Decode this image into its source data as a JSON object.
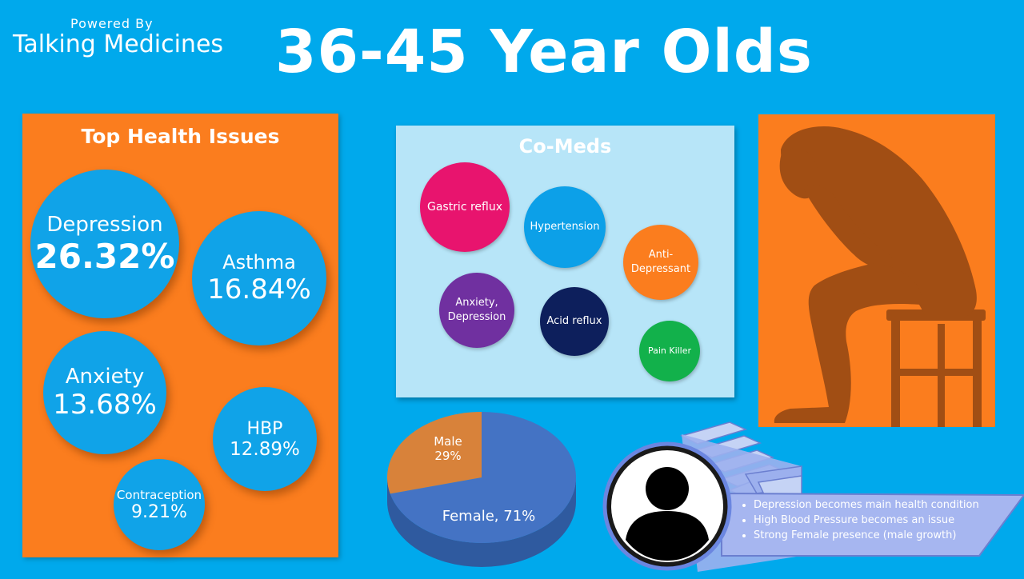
{
  "header": {
    "powered_by": "Powered By",
    "brand": "Talking Medicines",
    "title": "36-45 Year Olds"
  },
  "health_issues": {
    "title": "Top Health Issues",
    "items": [
      {
        "name": "Depression",
        "value": "26.32%"
      },
      {
        "name": "Asthma",
        "value": "16.84%"
      },
      {
        "name": "Anxiety",
        "value": "13.68%"
      },
      {
        "name": "HBP",
        "value": "12.89%"
      },
      {
        "name": "Contraception",
        "value": "9.21%"
      }
    ]
  },
  "co_meds": {
    "title": "Co-Meds",
    "items": [
      {
        "label": "Gastric reflux",
        "color": "#e8146e"
      },
      {
        "label": "Hypertension",
        "color": "#0ca0e8"
      },
      {
        "label": "Anti-\nDepressant",
        "color": "#fb7d1e"
      },
      {
        "label": "Anxiety,\nDepression",
        "color": "#7030a0"
      },
      {
        "label": "Acid reflux",
        "color": "#0d1f5c"
      },
      {
        "label": "Pain Killer",
        "color": "#12b14b"
      }
    ]
  },
  "gender": {
    "male": {
      "label": "Male",
      "value": "29%",
      "percent": 29,
      "color": "#d8823a"
    },
    "female": {
      "label": "Female, 71%",
      "percent": 71,
      "color": "#4473c4"
    }
  },
  "insights": [
    "Depression becomes main health condition",
    "High Blood Pressure becomes an issue",
    "Strong Female presence (male growth)"
  ],
  "colors": {
    "background": "#00a9ec",
    "panel_orange": "#fb7d1e",
    "bubble_blue": "#10a3e8",
    "panel_light": "#b7e5f8"
  },
  "icons": {
    "silhouette": "distressed-person-silhouette",
    "avatar": "user-avatar-icon",
    "steps": "staircase-graphic"
  }
}
